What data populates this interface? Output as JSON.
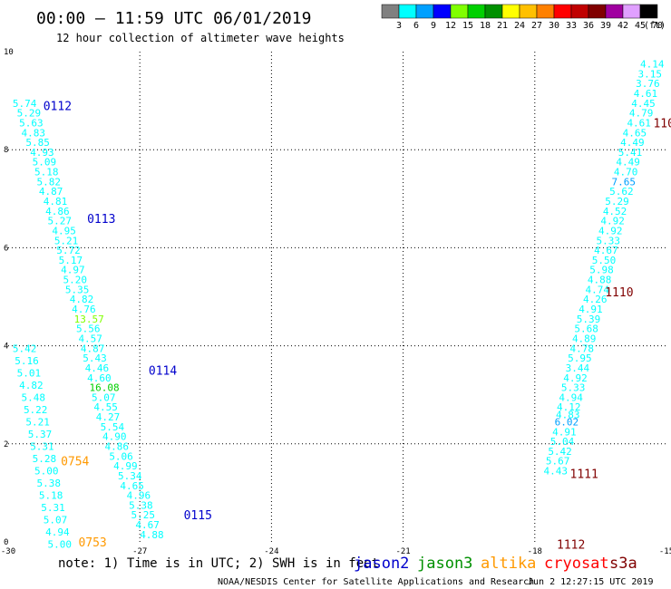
{
  "chart_data": {
    "type": "scatter",
    "title": "00:00 – 11:59 UTC 06/01/2019",
    "subtitle": "12 hour collection of altimeter wave heights",
    "xlim": [
      -30,
      -15
    ],
    "ylim": [
      0,
      10
    ],
    "x_ticks": [
      "-30",
      "-27",
      "-24",
      "-21",
      "-18",
      "-15"
    ],
    "y_ticks": [
      "0",
      "2",
      "4",
      "6",
      "8",
      "10"
    ],
    "grid": "dotted",
    "colorbar": {
      "unit": "(ft)",
      "labels": [
        "3",
        "6",
        "9",
        "12",
        "15",
        "18",
        "21",
        "24",
        "27",
        "30",
        "33",
        "36",
        "39",
        "42",
        "45",
        "70"
      ],
      "colors": [
        "#808080",
        "#00ffff",
        "#00a0ff",
        "#0000ff",
        "#80ff00",
        "#00d000",
        "#009000",
        "#ffff00",
        "#ffc000",
        "#ff8000",
        "#ff0000",
        "#c00000",
        "#800000",
        "#a000a0",
        "#e0a0ff",
        "#000000"
      ]
    },
    "series": [
      {
        "name": "jason2",
        "color": "#0000cc",
        "labels": [
          {
            "text": "0112",
            "x": -29.2,
            "y": 8.9
          },
          {
            "text": "0113",
            "x": -28.2,
            "y": 6.6
          },
          {
            "text": "0114",
            "x": -26.8,
            "y": 3.5
          },
          {
            "text": "0115",
            "x": -26.0,
            "y": 0.55
          }
        ],
        "points": [
          [
            -29.9,
            8.95,
            "5.74"
          ],
          [
            -29.8,
            8.75,
            "5.29"
          ],
          [
            -29.75,
            8.55,
            "5.63"
          ],
          [
            -29.7,
            8.35,
            "4.83"
          ],
          [
            -29.6,
            8.15,
            "5.85"
          ],
          [
            -29.5,
            7.95,
            "4.93"
          ],
          [
            -29.45,
            7.75,
            "5.09"
          ],
          [
            -29.4,
            7.55,
            "5.18"
          ],
          [
            -29.35,
            7.35,
            "5.82"
          ],
          [
            -29.3,
            7.15,
            "4.87"
          ],
          [
            -29.2,
            6.95,
            "4.81"
          ],
          [
            -29.15,
            6.75,
            "4.86"
          ],
          [
            -29.1,
            6.55,
            "5.27"
          ],
          [
            -29.0,
            6.35,
            "4.95"
          ],
          [
            -28.95,
            6.15,
            "5.21"
          ],
          [
            -28.9,
            5.95,
            "5.72"
          ],
          [
            -28.85,
            5.75,
            "5.17"
          ],
          [
            -28.8,
            5.55,
            "4.97"
          ],
          [
            -28.75,
            5.35,
            "5.20"
          ],
          [
            -28.7,
            5.15,
            "5.35"
          ],
          [
            -28.6,
            4.95,
            "4.82"
          ],
          [
            -28.55,
            4.75,
            "4.76"
          ],
          [
            -28.5,
            4.55,
            "13.57"
          ],
          [
            -28.45,
            4.35,
            "5.56"
          ],
          [
            -28.4,
            4.15,
            "4.57"
          ],
          [
            -28.35,
            3.95,
            "4.87"
          ],
          [
            -28.3,
            3.75,
            "5.43"
          ],
          [
            -28.25,
            3.55,
            "4.46"
          ],
          [
            -28.2,
            3.35,
            "4.60"
          ],
          [
            -28.15,
            3.15,
            "16.08"
          ],
          [
            -28.1,
            2.95,
            "5.07"
          ],
          [
            -28.05,
            2.75,
            "4.55"
          ],
          [
            -28.0,
            2.55,
            "4.27"
          ],
          [
            -27.9,
            2.35,
            "5.54"
          ],
          [
            -27.85,
            2.15,
            "4.90"
          ],
          [
            -27.8,
            1.95,
            "4.86"
          ],
          [
            -27.7,
            1.75,
            "5.06"
          ],
          [
            -27.6,
            1.55,
            "4.99"
          ],
          [
            -27.5,
            1.35,
            "5.34"
          ],
          [
            -27.45,
            1.15,
            "4.65"
          ],
          [
            -27.3,
            0.95,
            "4.96"
          ],
          [
            -27.25,
            0.75,
            "5.38"
          ],
          [
            -27.2,
            0.55,
            "5.25"
          ],
          [
            -27.1,
            0.35,
            "4.67"
          ],
          [
            -27.0,
            0.15,
            "4.88"
          ]
        ]
      },
      {
        "name": "jason3",
        "color": "#009000",
        "labels": [],
        "points": []
      },
      {
        "name": "altika",
        "color": "#ff9900",
        "labels": [
          {
            "text": "0754",
            "x": -28.8,
            "y": 1.65
          },
          {
            "text": "0753",
            "x": -28.4,
            "y": 0.0
          }
        ],
        "points": [
          [
            -29.9,
            3.95,
            "5.42"
          ],
          [
            -29.85,
            3.7,
            "5.16"
          ],
          [
            -29.8,
            3.45,
            "5.01"
          ],
          [
            -29.75,
            3.2,
            "4.82"
          ],
          [
            -29.7,
            2.95,
            "5.48"
          ],
          [
            -29.65,
            2.7,
            "5.22"
          ],
          [
            -29.6,
            2.45,
            "5.21"
          ],
          [
            -29.55,
            2.2,
            "5.37"
          ],
          [
            -29.5,
            1.95,
            "5.31"
          ],
          [
            -29.45,
            1.7,
            "5.28"
          ],
          [
            -29.4,
            1.45,
            "5.00"
          ],
          [
            -29.35,
            1.2,
            "5.38"
          ],
          [
            -29.3,
            0.95,
            "5.18"
          ],
          [
            -29.25,
            0.7,
            "5.31"
          ],
          [
            -29.2,
            0.45,
            "5.07"
          ],
          [
            -29.15,
            0.2,
            "4.94"
          ],
          [
            -29.1,
            -0.05,
            "5.00"
          ]
        ]
      },
      {
        "name": "cryosat",
        "color": "#ff0000",
        "labels": [],
        "points": []
      },
      {
        "name": "s3a",
        "color": "#800000",
        "labels": [
          {
            "text": "110",
            "x": -15.3,
            "y": 8.55
          },
          {
            "text": "1110",
            "x": -16.4,
            "y": 5.1
          },
          {
            "text": "1111",
            "x": -17.2,
            "y": 1.4
          },
          {
            "text": "1112",
            "x": -17.5,
            "y": -0.05
          }
        ],
        "points": [
          [
            -15.6,
            9.75,
            "4.14"
          ],
          [
            -15.65,
            9.55,
            "3.15"
          ],
          [
            -15.7,
            9.35,
            "3.76"
          ],
          [
            -15.75,
            9.15,
            "4.61"
          ],
          [
            -15.8,
            8.95,
            "4.45"
          ],
          [
            -15.85,
            8.75,
            "4.79"
          ],
          [
            -15.9,
            8.55,
            "4.61"
          ],
          [
            -16.0,
            8.35,
            "4.65"
          ],
          [
            -16.05,
            8.15,
            "4.49"
          ],
          [
            -16.1,
            7.95,
            "5.41"
          ],
          [
            -16.15,
            7.75,
            "4.49"
          ],
          [
            -16.2,
            7.55,
            "4.70"
          ],
          [
            -16.25,
            7.35,
            "7.65"
          ],
          [
            -16.3,
            7.15,
            "5.62"
          ],
          [
            -16.4,
            6.95,
            "5.29"
          ],
          [
            -16.45,
            6.75,
            "4.52"
          ],
          [
            -16.5,
            6.55,
            "4.92"
          ],
          [
            -16.55,
            6.35,
            "4.92"
          ],
          [
            -16.6,
            6.15,
            "5.33"
          ],
          [
            -16.65,
            5.95,
            "4.67"
          ],
          [
            -16.7,
            5.75,
            "5.50"
          ],
          [
            -16.75,
            5.55,
            "5.98"
          ],
          [
            -16.8,
            5.35,
            "4.88"
          ],
          [
            -16.85,
            5.15,
            "4.74"
          ],
          [
            -16.9,
            4.95,
            "4.26"
          ],
          [
            -17.0,
            4.75,
            "4.91"
          ],
          [
            -17.05,
            4.55,
            "5.39"
          ],
          [
            -17.1,
            4.35,
            "5.68"
          ],
          [
            -17.15,
            4.15,
            "4.89"
          ],
          [
            -17.2,
            3.95,
            "4.78"
          ],
          [
            -17.25,
            3.75,
            "5.95"
          ],
          [
            -17.3,
            3.55,
            "3.44"
          ],
          [
            -17.35,
            3.35,
            "4.92"
          ],
          [
            -17.4,
            3.15,
            "5.33"
          ],
          [
            -17.45,
            2.95,
            "4.94"
          ],
          [
            -17.5,
            2.75,
            "4.12"
          ],
          [
            -17.52,
            2.6,
            "4.83"
          ],
          [
            -17.55,
            2.45,
            "6.02"
          ],
          [
            -17.6,
            2.25,
            "4.91"
          ],
          [
            -17.65,
            2.05,
            "5.04"
          ],
          [
            -17.7,
            1.85,
            "5.42"
          ],
          [
            -17.75,
            1.65,
            "5.67"
          ],
          [
            -17.8,
            1.45,
            "4.43"
          ]
        ]
      }
    ],
    "legend_note": "note: 1) Time is in UTC; 2) SWH is in feet",
    "legend_placement": "bottom",
    "credit": "NOAA/NESDIS Center for Satellite Applications and Research",
    "timestamp": "Jun 2 12:27:15 UTC 2019"
  }
}
